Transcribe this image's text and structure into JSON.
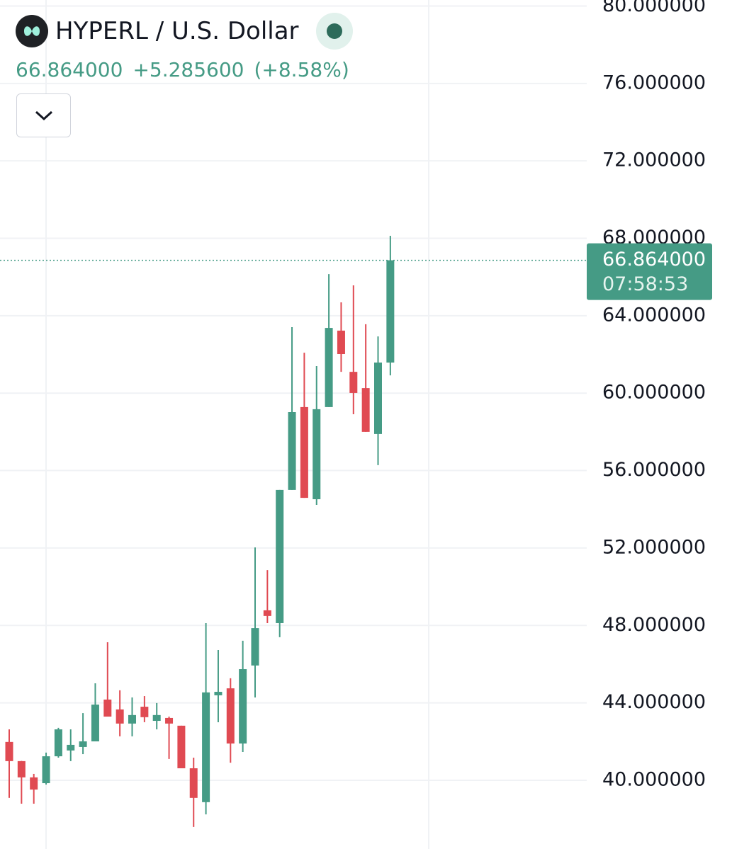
{
  "chart_data": {
    "type": "candlestick",
    "title": "HYPERL / U.S. Dollar",
    "legend": {
      "price": "66.864000",
      "change": "+5.285600",
      "change_percent": "(+8.58%)"
    },
    "categories": [
      null,
      null,
      null,
      null,
      null,
      null,
      null,
      null,
      null,
      null,
      null,
      null,
      null,
      null,
      null,
      null,
      null,
      null,
      null,
      null,
      null,
      null,
      null,
      null,
      null,
      null,
      null,
      null,
      null,
      null,
      null,
      null
    ],
    "open": [
      41.98,
      40.99,
      40.15,
      39.85,
      41.24,
      41.54,
      41.72,
      42.01,
      44.17,
      43.66,
      42.93,
      43.8,
      43.07,
      43.22,
      42.82,
      40.62,
      38.87,
      44.39,
      44.75,
      41.9,
      45.93,
      48.78,
      48.12,
      55.0,
      59.28,
      54.52,
      59.28,
      63.23,
      61.1,
      60.26,
      57.89,
      61.58
    ],
    "high": [
      42.63,
      41.0,
      40.33,
      41.43,
      42.71,
      42.63,
      43.47,
      45.01,
      47.13,
      44.65,
      44.28,
      44.35,
      43.99,
      43.29,
      42.82,
      41.17,
      48.12,
      46.73,
      45.27,
      47.21,
      52.03,
      50.86,
      55.0,
      63.41,
      62.09,
      61.4,
      66.15,
      64.69,
      65.57,
      63.56,
      62.93,
      68.13
    ],
    "low": [
      39.09,
      38.79,
      38.79,
      39.78,
      41.17,
      40.99,
      41.35,
      42.01,
      43.29,
      42.27,
      42.27,
      43.0,
      42.63,
      41.1,
      40.62,
      37.59,
      38.24,
      43.0,
      40.91,
      41.46,
      44.28,
      48.12,
      47.39,
      55.0,
      54.59,
      54.23,
      59.28,
      61.1,
      58.91,
      58.0,
      56.28,
      60.92
    ],
    "close": [
      40.99,
      40.15,
      39.52,
      41.24,
      42.63,
      41.83,
      42.01,
      43.91,
      43.29,
      42.93,
      43.37,
      43.26,
      43.37,
      42.93,
      40.62,
      39.09,
      44.54,
      44.57,
      41.9,
      45.74,
      47.86,
      48.49,
      55.0,
      59.02,
      54.59,
      59.17,
      63.37,
      62.02,
      60.01,
      58.0,
      61.58,
      66.864
    ],
    "up_color": "#459b85",
    "down_color": "#e04a52",
    "ylim": [
      36.45,
      80.31
    ],
    "yticks": [
      {
        "value": 40,
        "label": "40.000000"
      },
      {
        "value": 44,
        "label": "44.000000"
      },
      {
        "value": 48,
        "label": "48.000000"
      },
      {
        "value": 52,
        "label": "52.000000"
      },
      {
        "value": 56,
        "label": "56.000000"
      },
      {
        "value": 60,
        "label": "60.000000"
      },
      {
        "value": 64,
        "label": "64.000000"
      },
      {
        "value": 68,
        "label": "68.000000"
      },
      {
        "value": 72,
        "label": "72.000000"
      },
      {
        "value": 76,
        "label": "76.000000"
      },
      {
        "value": 80,
        "label": "80.000000"
      }
    ],
    "grid": true,
    "last_price": {
      "value": 66.864,
      "label": "66.864000"
    },
    "countdown": "07:58:53"
  }
}
